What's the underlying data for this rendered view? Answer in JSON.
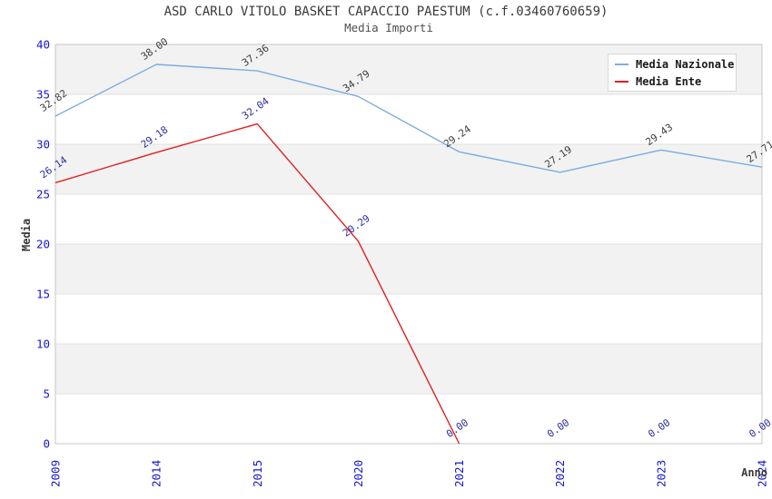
{
  "chart_data": {
    "type": "line",
    "title": "ASD CARLO VITOLO BASKET CAPACCIO PAESTUM (c.f.03460760659)",
    "subtitle": "Media Importi",
    "xlabel": "Anno",
    "ylabel": "Media",
    "categories": [
      "2009",
      "2014",
      "2015",
      "2020",
      "2021",
      "2022",
      "2023",
      "2024"
    ],
    "series": [
      {
        "name": "Media Nazionale",
        "color": "#7dade0",
        "label_color": "#3c3c3c",
        "values": [
          32.82,
          38.0,
          37.36,
          34.79,
          29.24,
          27.19,
          29.43,
          27.71
        ],
        "line_points": 8
      },
      {
        "name": "Media Ente",
        "color": "#e02020",
        "label_color": "#2e2ea0",
        "values": [
          26.14,
          29.18,
          32.04,
          20.29,
          0.0,
          0.0,
          0.0,
          0.0
        ],
        "line_points": 5
      }
    ],
    "ylim": [
      0,
      40
    ],
    "ytick_step": 5,
    "tick_label_color": "#1515cf",
    "band_color": "#f2f2f2",
    "gridline_color": "#e0e0e0",
    "plot_border_color": "#c6c6c6",
    "legend_position": "top-right",
    "grid": "horizontal-bands",
    "data_label_format": "2-decimals",
    "data_label_rotation_deg": -35,
    "x_tick_rotation_deg": -90
  }
}
